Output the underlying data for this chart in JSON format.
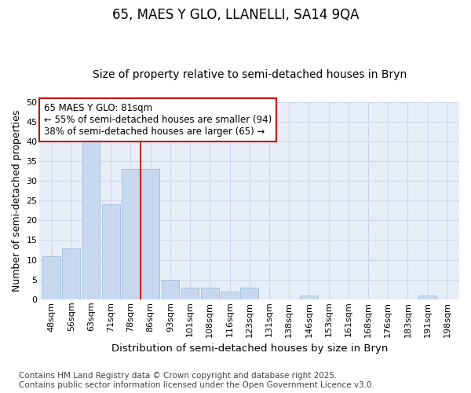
{
  "title": "65, MAES Y GLO, LLANELLI, SA14 9QA",
  "subtitle": "Size of property relative to semi-detached houses in Bryn",
  "xlabel": "Distribution of semi-detached houses by size in Bryn",
  "ylabel": "Number of semi-detached properties",
  "categories": [
    "48sqm",
    "56sqm",
    "63sqm",
    "71sqm",
    "78sqm",
    "86sqm",
    "93sqm",
    "101sqm",
    "108sqm",
    "116sqm",
    "123sqm",
    "131sqm",
    "138sqm",
    "146sqm",
    "153sqm",
    "161sqm",
    "168sqm",
    "176sqm",
    "183sqm",
    "191sqm",
    "198sqm"
  ],
  "values": [
    11,
    13,
    40,
    24,
    33,
    33,
    5,
    3,
    3,
    2,
    3,
    0,
    0,
    1,
    0,
    0,
    0,
    0,
    0,
    1,
    0
  ],
  "bar_color": "#c8d9ef",
  "bar_edge_color": "#9dbcd8",
  "grid_color": "#cdd6e8",
  "background_color": "#e8eef8",
  "figure_bg": "#ffffff",
  "vline_x": 4.5,
  "vline_color": "#cc0000",
  "annotation_text": "65 MAES Y GLO: 81sqm\n← 55% of semi-detached houses are smaller (94)\n38% of semi-detached houses are larger (65) →",
  "annotation_box_color": "#ffffff",
  "annotation_box_edge": "#cc0000",
  "ylim": [
    0,
    50
  ],
  "yticks": [
    0,
    5,
    10,
    15,
    20,
    25,
    30,
    35,
    40,
    45,
    50
  ],
  "footer": "Contains HM Land Registry data © Crown copyright and database right 2025.\nContains public sector information licensed under the Open Government Licence v3.0.",
  "title_fontsize": 12,
  "subtitle_fontsize": 10,
  "xlabel_fontsize": 9.5,
  "ylabel_fontsize": 9,
  "tick_fontsize": 8,
  "annotation_fontsize": 8.5,
  "footer_fontsize": 7.5
}
